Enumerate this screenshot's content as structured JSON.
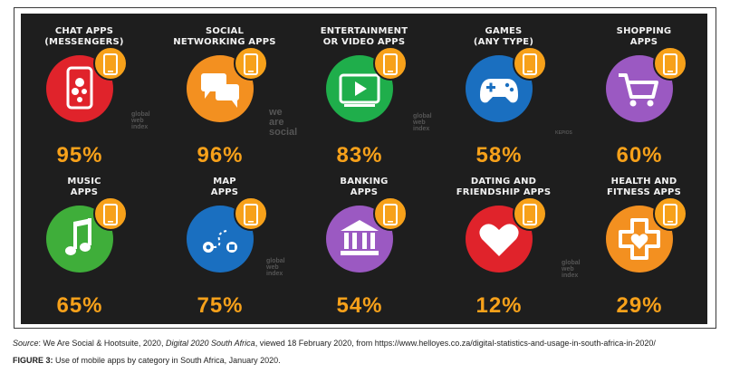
{
  "chart_data": {
    "type": "table",
    "categories": [
      {
        "label_lines": [
          "CHAT APPS",
          "(MESSENGERS)"
        ],
        "value_label": "95%",
        "value": 95,
        "color": "#e0232b",
        "icon": "chat-bubbles-phone-icon"
      },
      {
        "label_lines": [
          "SOCIAL",
          "NETWORKING APPS"
        ],
        "value_label": "96%",
        "value": 96,
        "color": "#f39020",
        "icon": "speech-bubbles-icon"
      },
      {
        "label_lines": [
          "ENTERTAINMENT",
          "OR VIDEO APPS"
        ],
        "value_label": "83%",
        "value": 83,
        "color": "#1fae4b",
        "icon": "video-player-icon"
      },
      {
        "label_lines": [
          "GAMES",
          "(ANY TYPE)"
        ],
        "value_label": "58%",
        "value": 58,
        "color": "#1a6fc0",
        "icon": "gamepad-icon"
      },
      {
        "label_lines": [
          "SHOPPING",
          "APPS"
        ],
        "value_label": "60%",
        "value": 60,
        "color": "#9b59c2",
        "icon": "shopping-cart-icon"
      },
      {
        "label_lines": [
          "MUSIC",
          "APPS"
        ],
        "value_label": "65%",
        "value": 65,
        "color": "#3fae3a",
        "icon": "music-note-icon"
      },
      {
        "label_lines": [
          "MAP",
          "APPS"
        ],
        "value_label": "75%",
        "value": 75,
        "color": "#1a6fc0",
        "icon": "map-route-icon"
      },
      {
        "label_lines": [
          "BANKING",
          "APPS"
        ],
        "value_label": "54%",
        "value": 54,
        "color": "#9b59c2",
        "icon": "bank-icon"
      },
      {
        "label_lines": [
          "DATING AND",
          "FRIENDSHIP APPS"
        ],
        "value_label": "12%",
        "value": 12,
        "color": "#e0232b",
        "icon": "heart-icon"
      },
      {
        "label_lines": [
          "HEALTH AND",
          "FITNESS APPS"
        ],
        "value_label": "29%",
        "value": 29,
        "color": "#f39020",
        "icon": "health-cross-heart-icon"
      }
    ]
  },
  "watermarks": {
    "we_are_social": [
      "we",
      "are",
      "social"
    ],
    "gwi_1": [
      "global",
      "web",
      "index"
    ],
    "gwi_2": [
      "global",
      "web",
      "index"
    ],
    "gwi_3": [
      "global",
      "web",
      "index"
    ],
    "gwi_4": [
      "global",
      "web",
      "index"
    ],
    "kepios": "KEPIOS"
  },
  "caption": {
    "source_label": "Source",
    "source_prefix": ": We Are Social & Hootsuite, 2020, ",
    "source_title": "Digital 2020 South Africa",
    "source_suffix": ", viewed 18 February 2020, from https://www.helloyes.co.za/digital-statistics-and-usage-in-south-africa-in-2020/",
    "figure_label": "FIGURE 3:",
    "figure_text": " Use of mobile apps by category in South Africa, January 2020."
  }
}
